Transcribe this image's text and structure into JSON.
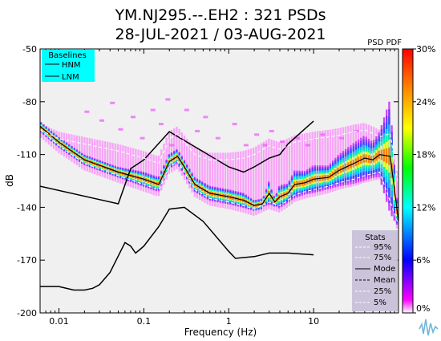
{
  "chart_data": {
    "type": "heatmap",
    "title": "YM.NJ295.--.EH2 : 321 PSDs",
    "subtitle": "28-JUL-2021 / 03-AUG-2021",
    "xlabel": "Frequency (Hz)",
    "ylabel": "dB",
    "xscale": "log",
    "xlim": [
      0.006,
      100
    ],
    "ylim": [
      -200,
      -50
    ],
    "xticks": [
      0.01,
      0.1,
      1,
      10
    ],
    "xtick_labels": [
      "0.01",
      "0.1",
      "1",
      "10"
    ],
    "yticks": [
      -200,
      -170,
      -140,
      -110,
      -80,
      -50
    ],
    "ytick_labels": [
      "-200",
      "-170",
      "-140",
      "-110",
      "-80",
      "-50"
    ],
    "colorbar": {
      "label": "PSD PDF",
      "ticks": [
        0,
        6,
        12,
        18,
        24,
        30
      ],
      "tick_labels": [
        "0%",
        "6%",
        "12%",
        "18%",
        "24%",
        "30%"
      ]
    },
    "baselines_legend": {
      "title": "Baselines",
      "placement": "top-left",
      "items": [
        "HNM",
        "LNM"
      ],
      "color": "#00ffff"
    },
    "stats_legend": {
      "title": "Stats",
      "placement": "bottom-right",
      "items": [
        "95%",
        "75%",
        "Mode",
        "Mean",
        "25%",
        "5%"
      ]
    },
    "series": [
      {
        "name": "HNM",
        "x": [
          0.006,
          0.05,
          0.07,
          0.1,
          0.2,
          0.3,
          1,
          1.5,
          2,
          3,
          4,
          5,
          10
        ],
        "y": [
          -128,
          -138,
          -118,
          -113,
          -97,
          -102,
          -117,
          -120,
          -117,
          -112,
          -110,
          -104,
          -91
        ]
      },
      {
        "name": "LNM",
        "x": [
          0.006,
          0.01,
          0.015,
          0.02,
          0.025,
          0.03,
          0.04,
          0.06,
          0.07,
          0.08,
          0.09,
          0.1,
          0.15,
          0.2,
          0.3,
          0.5,
          1,
          1.2,
          2,
          3,
          5,
          10
        ],
        "y": [
          -185,
          -185,
          -187,
          -187,
          -186,
          -184,
          -177,
          -160,
          -162,
          -166,
          -164,
          -162,
          -151,
          -141,
          -140,
          -148,
          -165,
          -169,
          -168,
          -166,
          -166,
          -167
        ]
      },
      {
        "name": "Mode",
        "x": [
          0.006,
          0.01,
          0.02,
          0.05,
          0.1,
          0.15,
          0.2,
          0.25,
          0.3,
          0.4,
          0.6,
          1,
          1.5,
          2,
          2.5,
          3,
          3.5,
          4,
          5,
          6,
          8,
          10,
          15,
          20,
          30,
          40,
          50,
          60,
          80,
          100
        ],
        "y": [
          -94,
          -103,
          -113,
          -120,
          -124,
          -127,
          -114,
          -111,
          -117,
          -127,
          -132,
          -134,
          -136,
          -139,
          -138,
          -132,
          -137,
          -134,
          -132,
          -127,
          -126,
          -124,
          -123,
          -119,
          -115,
          -112,
          -113,
          -110,
          -111,
          -148
        ]
      },
      {
        "name": "95%",
        "x": [
          0.006,
          0.01,
          0.02,
          0.05,
          0.1,
          0.15,
          0.2,
          0.25,
          0.3,
          0.4,
          0.6,
          1,
          1.5,
          2,
          3,
          4,
          5,
          6,
          8,
          10,
          15,
          20,
          30,
          40,
          50,
          60,
          80,
          100
        ],
        "y": [
          -96,
          -101,
          -104,
          -108,
          -112,
          -115,
          -101,
          -98,
          -103,
          -110,
          -113,
          -113,
          -112,
          -110,
          -105,
          -107,
          -105,
          -103,
          -102,
          -101,
          -100,
          -99,
          -97,
          -96,
          -98,
          -100,
          -98,
          -128
        ]
      },
      {
        "name": "5%",
        "x": [
          0.006,
          0.01,
          0.02,
          0.05,
          0.1,
          0.15,
          0.2,
          0.25,
          0.3,
          0.4,
          0.6,
          1,
          1.5,
          2,
          3,
          4,
          5,
          6,
          8,
          10,
          15,
          20,
          30,
          40,
          60,
          100
        ],
        "y": [
          -96,
          -105,
          -115,
          -122,
          -127,
          -130,
          -117,
          -114,
          -120,
          -130,
          -135,
          -137,
          -139,
          -141,
          -137,
          -139,
          -136,
          -133,
          -131,
          -130,
          -128,
          -126,
          -124,
          -122,
          -120,
          -150
        ]
      }
    ]
  }
}
